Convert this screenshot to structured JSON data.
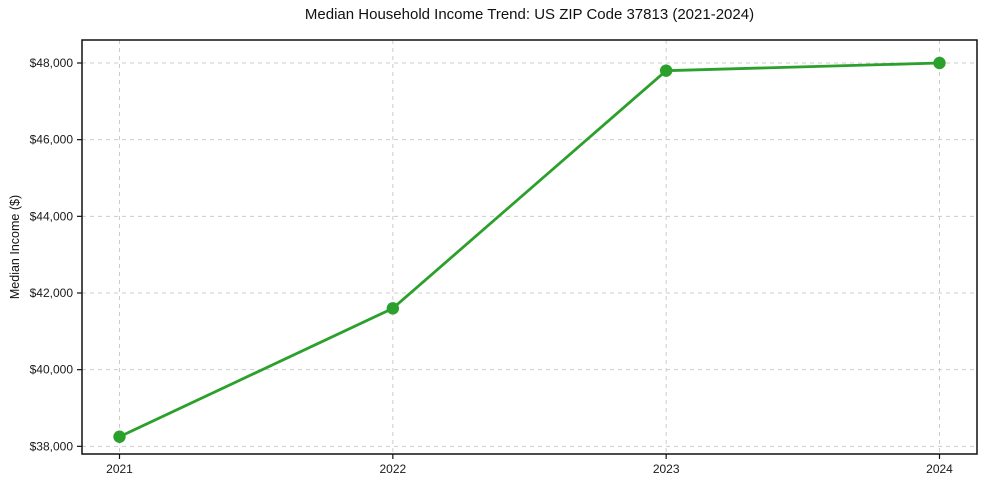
{
  "chart_data": {
    "type": "line",
    "title": "Median Household Income Trend: US ZIP Code 37813 (2021-2024)",
    "xlabel": "",
    "ylabel": "Median Income ($)",
    "x": [
      2021,
      2022,
      2023,
      2024
    ],
    "xtick_labels": [
      "2021",
      "2022",
      "2023",
      "2024"
    ],
    "series": [
      {
        "name": "Median Household Income",
        "values": [
          38250,
          41600,
          47800,
          48000
        ]
      }
    ],
    "ytick_values": [
      38000,
      40000,
      42000,
      44000,
      46000,
      48000
    ],
    "ytick_labels": [
      "$38,000",
      "$40,000",
      "$42,000",
      "$44,000",
      "$46,000",
      "$48,000"
    ],
    "ylim": [
      37800,
      48600
    ],
    "grid": "dashed-both-axes",
    "legend": "none",
    "line_color": "#2ca02c",
    "marker": "circle",
    "grid_color": "#cccccc",
    "axis_color": "#111111",
    "text_color": "#1a1a1a",
    "background": "#ffffff"
  }
}
